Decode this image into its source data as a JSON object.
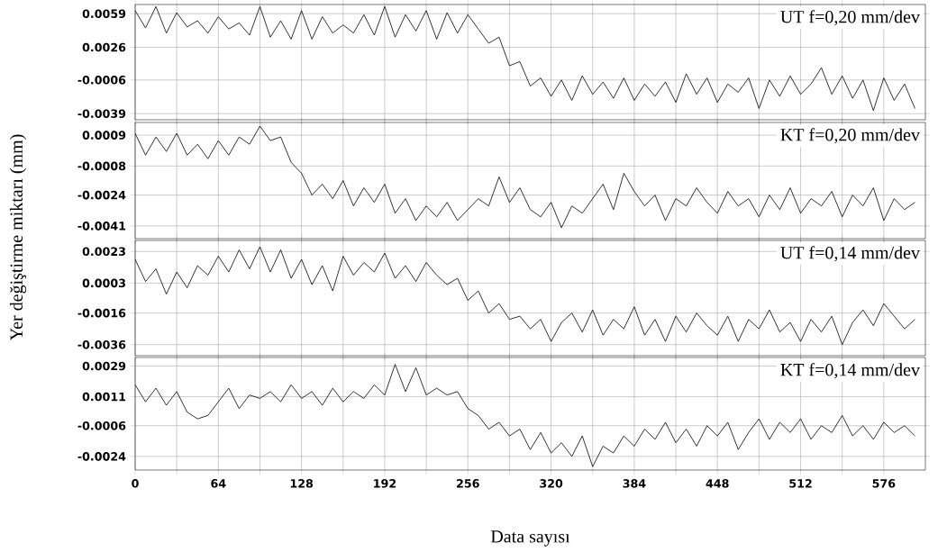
{
  "chart_data": [
    {
      "type": "line",
      "title": "UT f=0,20 mm/dev",
      "ylabel": "Yer değiştirme miktarı (mm)",
      "grid": true,
      "tick_labels": "y",
      "line_style": "solid",
      "x": [
        0,
        8,
        16,
        24,
        32,
        40,
        48,
        56,
        64,
        72,
        80,
        88,
        96,
        104,
        112,
        120,
        128,
        136,
        144,
        152,
        160,
        168,
        176,
        184,
        192,
        200,
        208,
        216,
        224,
        232,
        240,
        248,
        256,
        264,
        272,
        280,
        288,
        296,
        304,
        312,
        320,
        328,
        336,
        344,
        352,
        360,
        368,
        376,
        384,
        392,
        400,
        408,
        416,
        424,
        432,
        440,
        448,
        456,
        464,
        472,
        480,
        488,
        496,
        504,
        512,
        520,
        528,
        536,
        544,
        552,
        560,
        568,
        576,
        584,
        592,
        600
      ],
      "xlim": [
        0,
        608
      ],
      "ylim": [
        -0.0045,
        0.0068
      ],
      "xticks": [
        0,
        {
          "value": 32,
          "label": null
        },
        64,
        {
          "value": 96,
          "label": null
        },
        128,
        {
          "value": 160,
          "label": null
        },
        192,
        {
          "value": 224,
          "label": null
        },
        256,
        {
          "value": 288,
          "label": null
        },
        320,
        {
          "value": 352,
          "label": null
        },
        384,
        {
          "value": 416,
          "label": null
        },
        448,
        {
          "value": 480,
          "label": null
        },
        512,
        {
          "value": 544,
          "label": null
        },
        576
      ],
      "yticks": [
        0.0059,
        0.0026,
        -0.0006,
        -0.0039
      ],
      "series": [
        {
          "color": "#000000",
          "values": [
            0.0062,
            0.0045,
            0.0066,
            0.004,
            0.006,
            0.0046,
            0.0052,
            0.004,
            0.0056,
            0.0044,
            0.005,
            0.0038,
            0.0066,
            0.0036,
            0.0052,
            0.0034,
            0.0062,
            0.0034,
            0.0056,
            0.004,
            0.0048,
            0.004,
            0.0058,
            0.0038,
            0.0066,
            0.0036,
            0.0058,
            0.0042,
            0.0062,
            0.0034,
            0.006,
            0.004,
            0.0058,
            0.0044,
            0.003,
            0.0036,
            0.0008,
            0.0012,
            -0.0012,
            -0.0004,
            -0.0022,
            -0.0006,
            -0.0026,
            -0.0002,
            -0.002,
            -0.0008,
            -0.0024,
            -0.0004,
            -0.0026,
            -0.001,
            -0.0022,
            -0.0008,
            -0.0028,
            0.0,
            -0.002,
            -0.0004,
            -0.0028,
            -0.001,
            -0.0018,
            -0.0004,
            -0.0034,
            -0.0006,
            -0.0022,
            -0.0002,
            -0.002,
            -0.001,
            0.0006,
            -0.002,
            -0.0002,
            -0.0024,
            -0.0006,
            -0.0036,
            -0.0004,
            -0.0026,
            -0.001,
            -0.0034
          ]
        }
      ]
    },
    {
      "type": "line",
      "title": "KT f=0,20 mm/dev",
      "grid": true,
      "tick_labels": "y",
      "line_style": "solid",
      "x": [
        0,
        8,
        16,
        24,
        32,
        40,
        48,
        56,
        64,
        72,
        80,
        88,
        96,
        104,
        112,
        120,
        128,
        136,
        144,
        152,
        160,
        168,
        176,
        184,
        192,
        200,
        208,
        216,
        224,
        232,
        240,
        248,
        256,
        264,
        272,
        280,
        288,
        296,
        304,
        312,
        320,
        328,
        336,
        344,
        352,
        360,
        368,
        376,
        384,
        392,
        400,
        408,
        416,
        424,
        432,
        440,
        448,
        456,
        464,
        472,
        480,
        488,
        496,
        504,
        512,
        520,
        528,
        536,
        544,
        552,
        560,
        568,
        576,
        584,
        592,
        600
      ],
      "xlim": [
        0,
        608
      ],
      "ylim": [
        -0.0048,
        0.0016
      ],
      "xticks": [
        0,
        {
          "value": 32,
          "label": null
        },
        64,
        {
          "value": 96,
          "label": null
        },
        128,
        {
          "value": 160,
          "label": null
        },
        192,
        {
          "value": 224,
          "label": null
        },
        256,
        {
          "value": 288,
          "label": null
        },
        320,
        {
          "value": 352,
          "label": null
        },
        384,
        {
          "value": 416,
          "label": null
        },
        448,
        {
          "value": 480,
          "label": null
        },
        512,
        {
          "value": 544,
          "label": null
        },
        576
      ],
      "yticks": [
        0.0009,
        -0.0008,
        -0.0024,
        -0.0041
      ],
      "series": [
        {
          "color": "#000000",
          "values": [
            0.001,
            -0.0002,
            0.0008,
            0.0,
            0.001,
            -0.0002,
            0.0004,
            -0.0004,
            0.0006,
            -0.0002,
            0.0008,
            0.0004,
            0.0014,
            0.0006,
            0.0008,
            -0.0006,
            -0.0012,
            -0.0024,
            -0.0018,
            -0.0026,
            -0.0016,
            -0.003,
            -0.002,
            -0.0028,
            -0.0018,
            -0.0034,
            -0.0026,
            -0.0038,
            -0.003,
            -0.0036,
            -0.0028,
            -0.0038,
            -0.0032,
            -0.0026,
            -0.003,
            -0.0014,
            -0.0028,
            -0.002,
            -0.0032,
            -0.0036,
            -0.0028,
            -0.0042,
            -0.003,
            -0.0034,
            -0.0026,
            -0.0018,
            -0.0032,
            -0.0012,
            -0.0022,
            -0.003,
            -0.0024,
            -0.0038,
            -0.0026,
            -0.003,
            -0.002,
            -0.0028,
            -0.0034,
            -0.0022,
            -0.003,
            -0.0026,
            -0.0036,
            -0.0024,
            -0.0032,
            -0.002,
            -0.0034,
            -0.0026,
            -0.003,
            -0.0022,
            -0.0036,
            -0.0024,
            -0.003,
            -0.002,
            -0.0038,
            -0.0026,
            -0.0032,
            -0.0028
          ]
        }
      ]
    },
    {
      "type": "line",
      "title": "UT f=0,14 mm/dev",
      "grid": true,
      "tick_labels": "y",
      "line_style": "solid",
      "x": [
        0,
        8,
        16,
        24,
        32,
        40,
        48,
        56,
        64,
        72,
        80,
        88,
        96,
        104,
        112,
        120,
        128,
        136,
        144,
        152,
        160,
        168,
        176,
        184,
        192,
        200,
        208,
        216,
        224,
        232,
        240,
        248,
        256,
        264,
        272,
        280,
        288,
        296,
        304,
        312,
        320,
        328,
        336,
        344,
        352,
        360,
        368,
        376,
        384,
        392,
        400,
        408,
        416,
        424,
        432,
        440,
        448,
        456,
        464,
        472,
        480,
        488,
        496,
        504,
        512,
        520,
        528,
        536,
        544,
        552,
        560,
        568,
        576,
        584,
        592,
        600
      ],
      "xlim": [
        0,
        608
      ],
      "ylim": [
        -0.0043,
        0.003
      ],
      "xticks": [
        0,
        {
          "value": 32,
          "label": null
        },
        64,
        {
          "value": 96,
          "label": null
        },
        128,
        {
          "value": 160,
          "label": null
        },
        192,
        {
          "value": 224,
          "label": null
        },
        256,
        {
          "value": 288,
          "label": null
        },
        320,
        {
          "value": 352,
          "label": null
        },
        384,
        {
          "value": 416,
          "label": null
        },
        448,
        {
          "value": 480,
          "label": null
        },
        512,
        {
          "value": 544,
          "label": null
        },
        576
      ],
      "yticks": [
        0.0023,
        0.0003,
        -0.0016,
        -0.0036
      ],
      "series": [
        {
          "color": "#000000",
          "values": [
            0.0018,
            0.0004,
            0.0012,
            -0.0004,
            0.001,
            0.0,
            0.0014,
            0.0008,
            0.002,
            0.001,
            0.0024,
            0.0012,
            0.0026,
            0.001,
            0.0024,
            0.0006,
            0.0018,
            0.0002,
            0.0014,
            -0.0002,
            0.002,
            0.0008,
            0.0016,
            0.001,
            0.0022,
            0.0006,
            0.0014,
            0.0004,
            0.0016,
            0.0008,
            0.0002,
            0.0006,
            -0.0008,
            -0.0002,
            -0.0016,
            -0.001,
            -0.002,
            -0.0018,
            -0.0026,
            -0.002,
            -0.0034,
            -0.0022,
            -0.0016,
            -0.0028,
            -0.0014,
            -0.003,
            -0.002,
            -0.0026,
            -0.0012,
            -0.003,
            -0.002,
            -0.0034,
            -0.0018,
            -0.0028,
            -0.0016,
            -0.0024,
            -0.003,
            -0.0018,
            -0.0034,
            -0.002,
            -0.0026,
            -0.0014,
            -0.0028,
            -0.0022,
            -0.0034,
            -0.002,
            -0.0028,
            -0.0018,
            -0.0036,
            -0.0022,
            -0.0014,
            -0.0024,
            -0.001,
            -0.0018,
            -0.0026,
            -0.002
          ]
        }
      ]
    },
    {
      "type": "line",
      "title": "KT f=0,14 mm/dev",
      "xlabel": "Data sayısı",
      "grid": true,
      "line_style": "solid",
      "x": [
        0,
        8,
        16,
        24,
        32,
        40,
        48,
        56,
        64,
        72,
        80,
        88,
        96,
        104,
        112,
        120,
        128,
        136,
        144,
        152,
        160,
        168,
        176,
        184,
        192,
        200,
        208,
        216,
        224,
        232,
        240,
        248,
        256,
        264,
        272,
        280,
        288,
        296,
        304,
        312,
        320,
        328,
        336,
        344,
        352,
        360,
        368,
        376,
        384,
        392,
        400,
        408,
        416,
        424,
        432,
        440,
        448,
        456,
        464,
        472,
        480,
        488,
        496,
        504,
        512,
        520,
        528,
        536,
        544,
        552,
        560,
        568,
        576,
        584,
        592,
        600
      ],
      "xlim": [
        0,
        608
      ],
      "ylim": [
        -0.0032,
        0.0034
      ],
      "xticks": [
        0,
        {
          "value": 32,
          "label": null
        },
        64,
        {
          "value": 96,
          "label": null
        },
        128,
        {
          "value": 160,
          "label": null
        },
        192,
        {
          "value": 224,
          "label": null
        },
        256,
        {
          "value": 288,
          "label": null
        },
        320,
        {
          "value": 352,
          "label": null
        },
        384,
        {
          "value": 416,
          "label": null
        },
        448,
        {
          "value": 480,
          "label": null
        },
        512,
        {
          "value": 544,
          "label": null
        },
        576
      ],
      "yticks": [
        0.0029,
        0.0011,
        -0.0006,
        -0.0024
      ],
      "series": [
        {
          "color": "#000000",
          "values": [
            0.0018,
            0.0008,
            0.0016,
            0.0006,
            0.0014,
            0.0002,
            -0.0002,
            0.0,
            0.0008,
            0.0016,
            0.0004,
            0.0012,
            0.001,
            0.0014,
            0.0008,
            0.0018,
            0.001,
            0.0014,
            0.0006,
            0.0016,
            0.0008,
            0.0014,
            0.001,
            0.0018,
            0.0012,
            0.003,
            0.0014,
            0.0028,
            0.0012,
            0.0016,
            0.0012,
            0.0014,
            0.0004,
            0.0,
            -0.0008,
            -0.0004,
            -0.0012,
            -0.0008,
            -0.002,
            -0.001,
            -0.0022,
            -0.0016,
            -0.0024,
            -0.0012,
            -0.003,
            -0.0018,
            -0.0022,
            -0.0012,
            -0.0018,
            -0.0008,
            -0.0014,
            -0.0004,
            -0.0016,
            -0.0008,
            -0.0018,
            -0.0006,
            -0.0012,
            -0.0004,
            -0.002,
            -0.001,
            -0.0002,
            -0.0014,
            -0.0004,
            -0.001,
            -0.0002,
            -0.0014,
            -0.0006,
            -0.001,
            0.0,
            -0.0012,
            -0.0006,
            -0.0014,
            -0.0004,
            -0.001,
            -0.0006,
            -0.0012
          ]
        }
      ]
    }
  ]
}
